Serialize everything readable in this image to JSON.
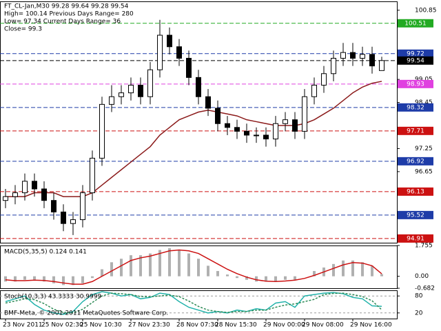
{
  "chart_data": [
    {
      "type": "candlestick",
      "title": "FT_CL-Jan,M30  99.28 99.64 99.28 99.54",
      "info_lines": [
        "High= 100.14   Previous Days Range= 280",
        "Low= 97.34   Current Days Range= 36",
        "Close= 99.3"
      ],
      "categories": [
        "23 Nov 2011",
        null,
        null,
        null,
        "25 Nov 02:30",
        null,
        null,
        null,
        "25 Nov 10:30",
        null,
        null,
        null,
        null,
        "27 Nov 23:30",
        null,
        null,
        null,
        null,
        "28 Nov 07:30",
        null,
        null,
        null,
        "28 Nov 15:30",
        null,
        null,
        null,
        null,
        "29 Nov 00:00",
        null,
        null,
        null,
        "29 Nov 08:00",
        null,
        null,
        null,
        null,
        "29 Nov 16:00",
        null,
        null,
        null
      ],
      "open": [
        95.9,
        96.0,
        96.1,
        96.4,
        96.2,
        95.9,
        95.6,
        95.3,
        95.4,
        96.1,
        97.0,
        98.4,
        98.6,
        98.7,
        98.9,
        98.6,
        99.3,
        100.2,
        99.9,
        99.6,
        99.1,
        98.6,
        98.3,
        97.9,
        97.8,
        97.7,
        97.6,
        97.6,
        97.5,
        97.9,
        98.0,
        97.7,
        98.6,
        98.9,
        99.2,
        99.6,
        99.75,
        99.6,
        99.7,
        99.28
      ],
      "high": [
        96.2,
        96.3,
        96.6,
        96.6,
        96.4,
        96.1,
        95.8,
        95.6,
        96.3,
        97.2,
        98.6,
        98.9,
        98.9,
        99.1,
        99.1,
        99.5,
        100.6,
        100.4,
        100.1,
        99.8,
        99.3,
        98.8,
        98.5,
        98.1,
        98.0,
        97.9,
        97.8,
        97.8,
        98.1,
        98.2,
        98.2,
        98.8,
        99.1,
        99.4,
        99.8,
        100.0,
        100.0,
        99.9,
        99.9,
        99.64
      ],
      "low": [
        95.7,
        95.8,
        95.9,
        96.0,
        95.7,
        95.4,
        95.1,
        95.0,
        95.2,
        95.9,
        96.8,
        98.2,
        98.4,
        98.5,
        98.4,
        98.4,
        99.1,
        99.7,
        99.4,
        98.9,
        98.4,
        98.1,
        97.7,
        97.6,
        97.5,
        97.4,
        97.4,
        97.3,
        97.3,
        97.7,
        97.5,
        97.5,
        98.4,
        98.7,
        99.0,
        99.4,
        99.4,
        99.4,
        99.2,
        99.28
      ],
      "close": [
        96.0,
        96.1,
        96.4,
        96.2,
        95.9,
        95.6,
        95.3,
        95.4,
        96.1,
        97.0,
        98.4,
        98.6,
        98.7,
        98.9,
        98.6,
        99.3,
        100.2,
        99.9,
        99.6,
        99.1,
        98.6,
        98.3,
        97.9,
        97.8,
        97.7,
        97.6,
        97.6,
        97.5,
        97.9,
        98.0,
        97.7,
        98.6,
        98.9,
        99.2,
        99.6,
        99.75,
        99.6,
        99.7,
        99.4,
        99.54
      ],
      "ma": {
        "color": "#8b1a1a",
        "values": [
          96.0,
          96.0,
          96.0,
          96.1,
          96.1,
          96.1,
          96.0,
          96.0,
          96.0,
          96.1,
          96.3,
          96.5,
          96.7,
          96.9,
          97.1,
          97.3,
          97.6,
          97.8,
          98.0,
          98.1,
          98.2,
          98.25,
          98.2,
          98.15,
          98.1,
          98.0,
          97.95,
          97.9,
          97.85,
          97.85,
          97.85,
          97.9,
          98.0,
          98.15,
          98.3,
          98.5,
          98.7,
          98.85,
          98.95,
          99.0
        ]
      },
      "levels": [
        {
          "value": 100.51,
          "color": "#22aa22"
        },
        {
          "value": 99.72,
          "color": "#1e3ca8"
        },
        {
          "value": 99.54,
          "color": "#000000"
        },
        {
          "value": 98.93,
          "color": "#e040e0"
        },
        {
          "value": 98.32,
          "color": "#1e3ca8"
        },
        {
          "value": 97.71,
          "color": "#cc1111"
        },
        {
          "value": 96.92,
          "color": "#1e3ca8"
        },
        {
          "value": 96.13,
          "color": "#cc1111"
        },
        {
          "value": 95.52,
          "color": "#1e3ca8"
        },
        {
          "value": 94.91,
          "color": "#cc1111"
        }
      ],
      "ylim": [
        94.8,
        101.08
      ],
      "yticks": [
        100.85,
        99.05,
        98.45,
        97.25,
        96.65
      ]
    },
    {
      "type": "macd",
      "title": "MACD(5,35,5) 0.124 0.141",
      "histogram": {
        "color": "#b0b0b0",
        "values": [
          -0.3,
          -0.3,
          -0.2,
          -0.2,
          -0.3,
          -0.4,
          -0.5,
          -0.5,
          -0.4,
          -0.1,
          0.4,
          0.8,
          1.0,
          1.2,
          1.2,
          1.3,
          1.5,
          1.6,
          1.5,
          1.3,
          1.0,
          0.6,
          0.3,
          0.1,
          -0.1,
          -0.2,
          -0.3,
          -0.3,
          -0.3,
          -0.2,
          -0.2,
          0.0,
          0.3,
          0.5,
          0.7,
          0.9,
          0.9,
          0.8,
          0.6,
          0.124
        ]
      },
      "signal": {
        "color": "#cc1111",
        "values": [
          -0.2,
          -0.25,
          -0.25,
          -0.22,
          -0.24,
          -0.3,
          -0.38,
          -0.45,
          -0.45,
          -0.3,
          0.0,
          0.3,
          0.6,
          0.9,
          1.05,
          1.15,
          1.3,
          1.45,
          1.5,
          1.45,
          1.3,
          1.0,
          0.7,
          0.4,
          0.15,
          -0.05,
          -0.2,
          -0.28,
          -0.3,
          -0.27,
          -0.22,
          -0.12,
          0.05,
          0.25,
          0.45,
          0.65,
          0.78,
          0.75,
          0.6,
          0.141
        ]
      },
      "ylim": [
        -0.682,
        1.755
      ],
      "yticks": [
        1.755,
        {
          "value": 0,
          "label": "0.00"
        },
        -0.682
      ]
    },
    {
      "type": "stochastic",
      "title": "Stoch(10,3,3) 43.3333 30.9999",
      "main": {
        "color": "#20b2aa",
        "values": [
          60,
          70,
          80,
          50,
          30,
          20,
          15,
          25,
          60,
          85,
          95,
          90,
          80,
          85,
          70,
          75,
          90,
          85,
          60,
          40,
          30,
          20,
          25,
          20,
          30,
          25,
          35,
          30,
          55,
          60,
          40,
          80,
          85,
          90,
          92,
          88,
          75,
          70,
          45,
          43.3333
        ]
      },
      "signal": {
        "color": "#2e8b57",
        "values": [
          55,
          62,
          70,
          67,
          53,
          33,
          22,
          20,
          33,
          57,
          80,
          90,
          88,
          85,
          78,
          77,
          80,
          83,
          78,
          62,
          43,
          30,
          25,
          22,
          25,
          25,
          30,
          30,
          40,
          48,
          52,
          60,
          68,
          85,
          89,
          90,
          85,
          78,
          63,
          30.9999
        ]
      },
      "ylim": [
        0,
        100
      ],
      "yticks": [
        80,
        20
      ]
    }
  ],
  "footer": "BMF-Meta, © 2001-2011 MetaQuotes Software Corp."
}
